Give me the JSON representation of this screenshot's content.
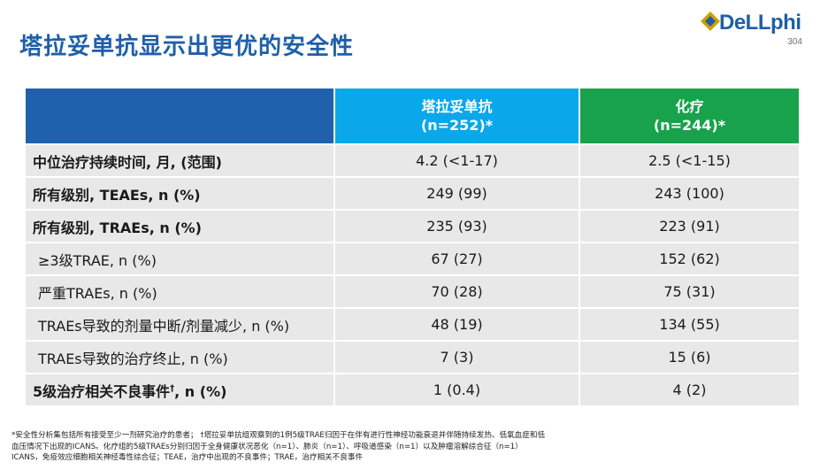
{
  "title": "塔拉妥单抗显示出更优的安全性",
  "logo": {
    "text": "DeLLphi",
    "number": "304"
  },
  "table": {
    "headers": [
      {
        "line1": "",
        "line2": ""
      },
      {
        "line1": "塔拉妥单抗",
        "line2": "(n=252)*"
      },
      {
        "line1": "化疗",
        "line2": "(n=244)*"
      }
    ],
    "rows": [
      {
        "label": "中位治疗持续时间, 月, (范围)",
        "sup": "",
        "label_tail": "",
        "v1": "4.2 (<1-17)",
        "v2": "2.5 (<1-15)"
      },
      {
        "label": "所有级别, TEAEs, n (%)",
        "sup": "",
        "label_tail": "",
        "v1": "249 (99)",
        "v2": "243 (100)"
      },
      {
        "label": "所有级别, TRAEs, n (%)",
        "sup": "",
        "label_tail": "",
        "v1": "235 (93)",
        "v2": "223 (91)"
      },
      {
        "label": "≥3级TRAE, n (%)",
        "sup": "",
        "label_tail": "",
        "v1": "67 (27)",
        "v2": "152 (62)"
      },
      {
        "label": "严重TRAEs, n (%)",
        "sup": "",
        "label_tail": "",
        "v1": "70 (28)",
        "v2": "75 (31)"
      },
      {
        "label": "TRAEs导致的剂量中断/剂量减少, n (%)",
        "sup": "",
        "label_tail": "",
        "v1": "48 (19)",
        "v2": "134 (55)"
      },
      {
        "label": "TRAEs导致的治疗终止, n (%)",
        "sup": "",
        "label_tail": "",
        "v1": "7 (3)",
        "v2": "15 (6)"
      },
      {
        "label": "5级治疗相关不良事件",
        "sup": "†",
        "label_tail": ", n (%)",
        "v1": "1 (0.4)",
        "v2": "4 (2)"
      }
    ]
  },
  "footnote": {
    "line1": "*安全性分析集包括所有接受至少一剂研究治疗的患者； †塔拉妥单抗组观察到的1例5级TRAE归因于在伴有进行性神经功能衰退并伴随持续发热、低氧血症和低",
    "line2": "血压情况下出现的ICANS。化疗组的5级TRAEs分别归因于全身健康状况恶化（n=1）、肺炎（n=1）、呼吸道感染（n=1）以及肿瘤溶解综合征（n=1）",
    "line3": "ICANS，免疫效应细胞相关神经毒性综合征；TEAE，治疗中出现的不良事件；TRAE，治疗相关不良事件"
  }
}
